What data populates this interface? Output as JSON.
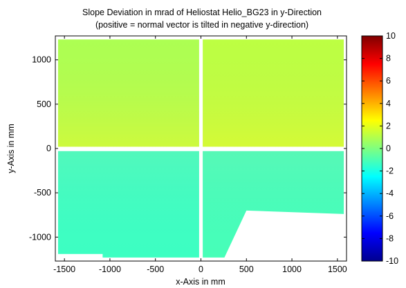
{
  "chart_data": {
    "type": "heatmap",
    "title": "Slope Deviation in mrad of Heliostat Helio_BG23 in y-Direction",
    "subtitle": "(positive = normal vector is tilted in negative y-direction)",
    "xlabel": "x-Axis in mm",
    "ylabel": "y-Axis in mm",
    "xlim": [
      -1600,
      1600
    ],
    "ylim": [
      -1270,
      1270
    ],
    "xticks": [
      -1500,
      -1000,
      -500,
      0,
      500,
      1000,
      1500
    ],
    "xtick_labels": [
      "-1500",
      "-1000",
      "-500",
      "0",
      "500",
      "1000",
      "1500"
    ],
    "yticks": [
      -1000,
      -500,
      0,
      500,
      1000
    ],
    "ytick_labels": [
      "-1000",
      "-500",
      "0",
      "500",
      "1000"
    ],
    "colorbar": {
      "range": [
        -10,
        10
      ],
      "ticks": [
        10,
        8,
        6,
        4,
        2,
        0,
        -2,
        -4,
        -6,
        -8,
        -10
      ],
      "tick_labels": [
        "10",
        "8",
        "6",
        "4",
        "2",
        "0",
        "-2",
        "-4",
        "-6",
        "-8",
        "-10"
      ],
      "colormap": "jet"
    },
    "regions": [
      {
        "name": "upper-left facet",
        "x": [
          -1570,
          -20
        ],
        "y": [
          20,
          1230
        ],
        "mean_value": 0.9
      },
      {
        "name": "upper-right facet",
        "x": [
          20,
          1570
        ],
        "y": [
          20,
          1230
        ],
        "mean_value": 1.2
      },
      {
        "name": "lower-left facet",
        "x": [
          -1570,
          -20
        ],
        "y": [
          -1230,
          -30
        ],
        "mean_value": -1.3
      },
      {
        "name": "lower-right facet",
        "x": [
          20,
          1570
        ],
        "y": [
          -1230,
          -30
        ],
        "mean_value": -1.1
      }
    ],
    "grid": false
  }
}
